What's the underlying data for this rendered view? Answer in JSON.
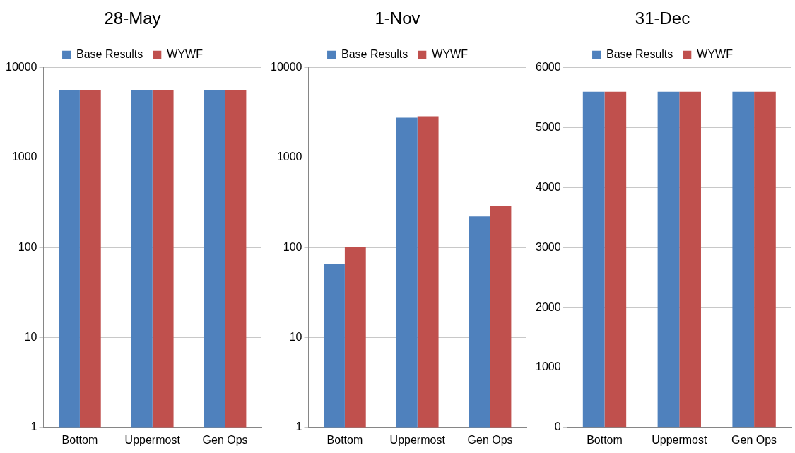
{
  "chart_data": [
    {
      "type": "bar",
      "title": "28-May",
      "categories": [
        "Bottom",
        "Uppermost",
        "Gen Ops"
      ],
      "series": [
        {
          "name": "Base Results",
          "color": "#4f81bd",
          "values": [
            5600,
            5600,
            5600
          ]
        },
        {
          "name": "WYWF",
          "color": "#c0504d",
          "values": [
            5600,
            5600,
            5600
          ]
        }
      ],
      "log": "y",
      "ylim": [
        1,
        10000
      ],
      "yticks": [
        1,
        10,
        100,
        1000,
        10000
      ],
      "grid": "y",
      "legend": "top"
    },
    {
      "type": "bar",
      "title": "1-Nov",
      "categories": [
        "Bottom",
        "Uppermost",
        "Gen Ops"
      ],
      "series": [
        {
          "name": "Base Results",
          "color": "#4f81bd",
          "values": [
            65,
            2780,
            222
          ]
        },
        {
          "name": "WYWF",
          "color": "#c0504d",
          "values": [
            102,
            2880,
            288
          ]
        }
      ],
      "log": "y",
      "ylim": [
        1,
        10000
      ],
      "yticks": [
        1,
        10,
        100,
        1000,
        10000
      ],
      "grid": "y",
      "legend": "top"
    },
    {
      "type": "bar",
      "title": "31-Dec",
      "categories": [
        "Bottom",
        "Uppermost",
        "Gen Ops"
      ],
      "series": [
        {
          "name": "Base Results",
          "color": "#4f81bd",
          "values": [
            5600,
            5600,
            5600
          ]
        },
        {
          "name": "WYWF",
          "color": "#c0504d",
          "values": [
            5600,
            5600,
            5600
          ]
        }
      ],
      "ylim": [
        0,
        6000
      ],
      "yticks": [
        0,
        1000,
        2000,
        3000,
        4000,
        5000,
        6000
      ],
      "grid": "y",
      "legend": "top"
    }
  ]
}
